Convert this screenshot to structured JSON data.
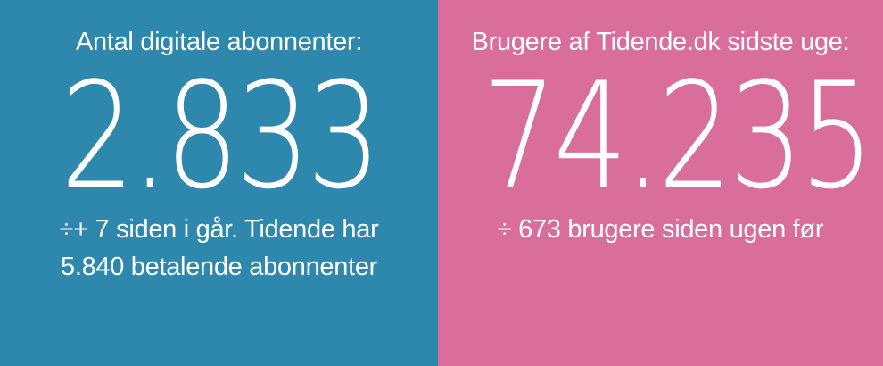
{
  "left_panel": {
    "label": "Antal digitale abonnenter:",
    "number": "2.833",
    "note_line1": "÷+ 7 siden i går. Tidende har",
    "note_line2": "5.840 betalende abonnenter",
    "background": "#2e88ad"
  },
  "right_panel": {
    "label": "Brugere af Tidende.dk sidste uge:",
    "number": "74.235",
    "note_line1": "÷ 673 brugere siden ugen før",
    "background": "#d96d9b"
  }
}
